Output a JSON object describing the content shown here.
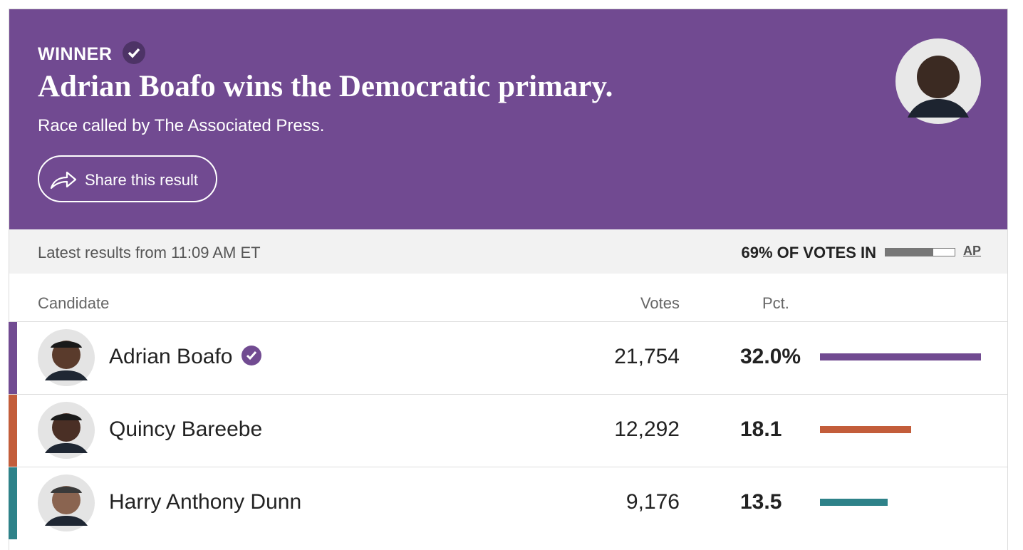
{
  "header": {
    "winner_label": "WINNER",
    "headline": "Adrian Boafo wins the Democratic primary.",
    "subtitle": "Race called by The Associated Press.",
    "share_button": "Share this result"
  },
  "status": {
    "updated": "Latest results from 11:09 AM ET",
    "reporting": {
      "value": 69,
      "label": "69% OF VOTES IN"
    },
    "source": "AP"
  },
  "table": {
    "columns": [
      "Candidate",
      "Votes",
      "Pct."
    ],
    "rows": [
      {
        "name": "Adrian Boafo",
        "winner": true,
        "votes": "21,754",
        "pct": 32.0,
        "pct_label": "32.0%",
        "color": "#714b91"
      },
      {
        "name": "Quincy Bareebe",
        "winner": false,
        "votes": "12,292",
        "pct": 18.1,
        "pct_label": "18.1",
        "color": "#c35d3a"
      },
      {
        "name": "Harry Anthony Dunn",
        "winner": false,
        "votes": "9,176",
        "pct": 13.5,
        "pct_label": "13.5",
        "color": "#2e8289"
      }
    ]
  }
}
